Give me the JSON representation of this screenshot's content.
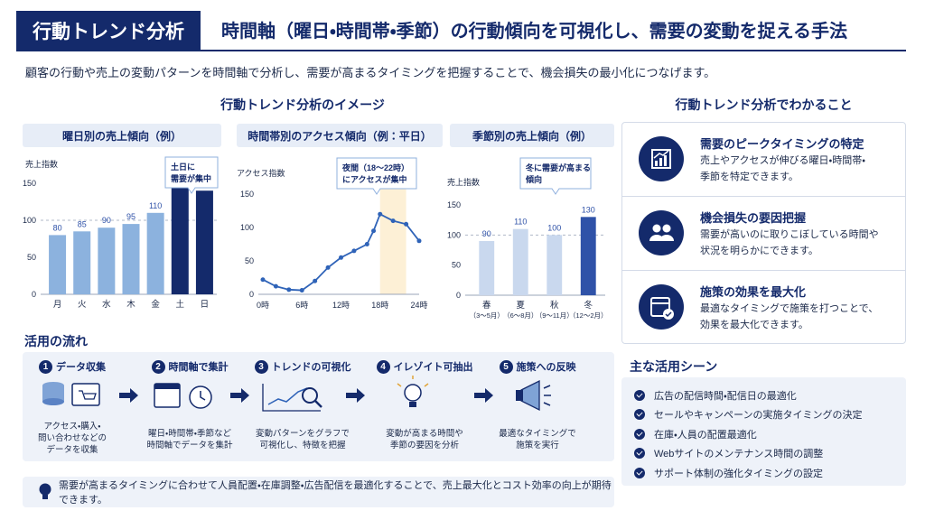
{
  "header": {
    "badge": "行動トレンド分析",
    "title": "時間軸（曜日・時間帯・季節）の行動傾向を可視化し、需要の変動を捉える手法"
  },
  "intro": "顧客の行動や売上の変動パターンを時間軸で分析し、需要が高まるタイミングを把握することで、機会損失の最小化につなげます。",
  "image_section": "行動トレンド分析のイメージ",
  "chart_data": [
    {
      "type": "bar",
      "title": "曜日別の売上傾向（例）",
      "y_label": "売上指数",
      "categories": [
        "月",
        "火",
        "水",
        "木",
        "金",
        "土",
        "日"
      ],
      "values": [
        80,
        85,
        90,
        95,
        110,
        150,
        140
      ],
      "colors": [
        "#8cb2de",
        "#8cb2de",
        "#8cb2de",
        "#8cb2de",
        "#8cb2de",
        "#142a6b",
        "#142a6b"
      ],
      "ylim": [
        0,
        150
      ],
      "yticks": [
        0,
        50,
        100,
        150
      ],
      "reference_line": 100,
      "annotation": [
        "土日に",
        "需要が集中"
      ]
    },
    {
      "type": "line",
      "title": "時間帯別のアクセス傾向（例：平日）",
      "y_label": "アクセス指数",
      "x": [
        0,
        2,
        4,
        6,
        8,
        10,
        12,
        14,
        16,
        17,
        18,
        20,
        22,
        24
      ],
      "values": [
        22,
        12,
        7,
        6,
        20,
        40,
        55,
        65,
        75,
        95,
        120,
        110,
        105,
        80
      ],
      "color": "#2f63b8",
      "xlim": [
        0,
        24
      ],
      "xticks": [
        {
          "value": 0,
          "label": "0時"
        },
        {
          "value": 6,
          "label": "6時"
        },
        {
          "value": 12,
          "label": "12時"
        },
        {
          "value": 18,
          "label": "18時"
        },
        {
          "value": 24,
          "label": "24時"
        }
      ],
      "ylim": [
        0,
        150
      ],
      "yticks": [
        0,
        50,
        100,
        150
      ],
      "highlight_range": [
        18,
        22
      ],
      "annotation": [
        "夜間（18〜22時）",
        "にアクセスが集中"
      ]
    },
    {
      "type": "bar",
      "title": "季節別の売上傾向（例）",
      "y_label": "売上指数",
      "categories": [
        "春",
        "夏",
        "秋",
        "冬"
      ],
      "category_notes": [
        "（3〜5月）",
        "（6〜8月）",
        "（9〜11月）",
        "（12〜2月）"
      ],
      "values": [
        90,
        110,
        100,
        130
      ],
      "colors": [
        "#c9d8ee",
        "#c9d8ee",
        "#c9d8ee",
        "#2f52a8"
      ],
      "ylim": [
        0,
        150
      ],
      "yticks": [
        0,
        50,
        100,
        150
      ],
      "reference_line": 100,
      "annotation": [
        "冬に需要が高まる",
        "傾向"
      ]
    }
  ],
  "findings": {
    "title": "行動トレンド分析でわかること",
    "items": [
      {
        "title": "需要のピークタイミングの特定",
        "text": [
          "売上やアクセスが伸びる曜日・時間帯・",
          "季節を特定できます。"
        ]
      },
      {
        "title": "機会損失の要因把握",
        "text": [
          "需要が高いのに取りこぼしている時間や",
          "状況を明らかにできます。"
        ]
      },
      {
        "title": "施策の効果を最大化",
        "text": [
          "最適なタイミングで施策を打つことで、",
          "効果を最大化できます。"
        ]
      }
    ]
  },
  "flow": {
    "title": "活用の流れ",
    "steps": [
      {
        "num": "1",
        "title": "データ収集",
        "text": [
          "アクセス・購入・",
          "問い合わせなどの",
          "データを収集"
        ]
      },
      {
        "num": "2",
        "title": "時間軸で集計",
        "text": [
          "曜日・時間帯・季節など",
          "時間軸でデータを集計"
        ]
      },
      {
        "num": "3",
        "title": "トレンドの可視化",
        "text": [
          "変動パターンをグラフで",
          "可視化し、特徴を把握"
        ]
      },
      {
        "num": "4",
        "title": "イレゾイト可抽出",
        "text": [
          "変動が高まる時間や",
          "季節の要因を分析"
        ]
      },
      {
        "num": "5",
        "title": "施策への反映",
        "text": [
          "最適なタイミングで",
          "施策を実行"
        ]
      }
    ]
  },
  "scenes": {
    "title": "主な活用シーン",
    "items": [
      "広告の配信時間・配信日の最適化",
      "セールやキャンペーンの実施タイミングの決定",
      "在庫・人員の配置最適化",
      "Webサイトのメンテナンス時間の調整",
      "サポート体制の強化タイミングの設定"
    ]
  },
  "note": "需要が高まるタイミングに合わせて人員配置・在庫調整・広告配信を最適化することで、売上最大化とコスト効率の向上が期待できます。"
}
